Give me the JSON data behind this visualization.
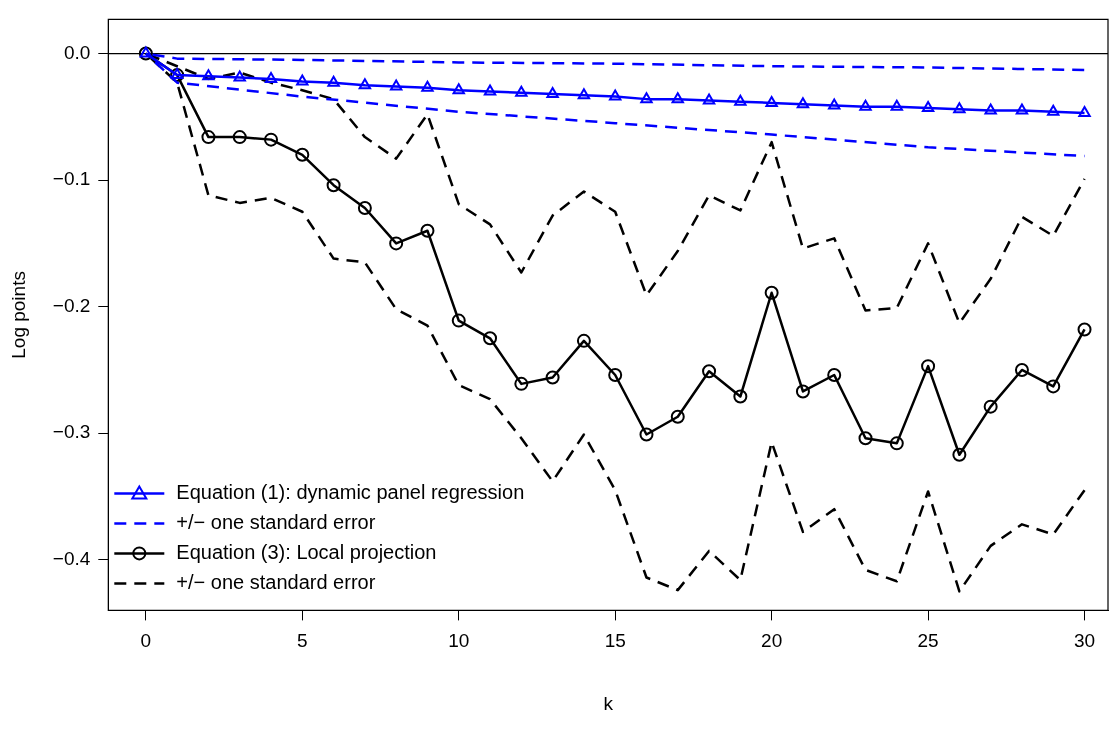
{
  "chart_data": {
    "type": "line",
    "xlabel": "k",
    "ylabel": "Log points",
    "xlim": [
      -1.2,
      30.75
    ],
    "ylim": [
      -0.44,
      0.027
    ],
    "xticks": [
      0,
      5,
      10,
      15,
      20,
      25,
      30
    ],
    "yticks": [
      {
        "value": -0.4,
        "label": "−0.4"
      },
      {
        "value": -0.3,
        "label": "−0.3"
      },
      {
        "value": -0.2,
        "label": "−0.2"
      },
      {
        "value": -0.1,
        "label": "−0.1"
      },
      {
        "value": 0,
        "label": "0.0"
      }
    ],
    "grid": false,
    "legend": "bottom left",
    "ref_lines": [
      {
        "axis": "y",
        "value": 0,
        "color": "#000000"
      }
    ],
    "series": [
      {
        "name": "Equation (1): dynamic panel regression",
        "color": "#0000ff",
        "marker": "triangle",
        "line_style": "solid",
        "x": [
          0,
          1,
          2,
          3,
          4,
          5,
          6,
          7,
          8,
          9,
          10,
          11,
          12,
          13,
          14,
          15,
          16,
          17,
          18,
          19,
          20,
          21,
          22,
          23,
          24,
          25,
          26,
          27,
          28,
          29,
          30
        ],
        "values": [
          0,
          -0.017,
          -0.018,
          -0.019,
          -0.02,
          -0.022,
          -0.023,
          -0.025,
          -0.026,
          -0.027,
          -0.029,
          -0.03,
          -0.031,
          -0.032,
          -0.033,
          -0.034,
          -0.036,
          -0.036,
          -0.037,
          -0.038,
          -0.039,
          -0.04,
          -0.041,
          -0.042,
          -0.042,
          -0.043,
          -0.044,
          -0.045,
          -0.045,
          -0.046,
          -0.047
        ]
      },
      {
        "name": "+/− one standard error",
        "color": "#0000ff",
        "marker": "none",
        "line_style": "dashed",
        "x": [
          0,
          1,
          5,
          10,
          15,
          20,
          25,
          30
        ],
        "values": [
          0,
          -0.004,
          -0.005,
          -0.007,
          -0.008,
          -0.01,
          -0.011,
          -0.013
        ]
      },
      {
        "color": "#0000ff",
        "marker": "none",
        "line_style": "dashed",
        "x": [
          0,
          1,
          5,
          10,
          15,
          20,
          25,
          30
        ],
        "values": [
          0,
          -0.023,
          -0.034,
          -0.046,
          -0.055,
          -0.064,
          -0.074,
          -0.081
        ]
      },
      {
        "name": "Equation (3): Local projection",
        "color": "#000000",
        "marker": "circle",
        "line_style": "solid",
        "x": [
          0,
          1,
          2,
          3,
          4,
          5,
          6,
          7,
          8,
          9,
          10,
          11,
          12,
          13,
          14,
          15,
          16,
          17,
          18,
          19,
          20,
          21,
          22,
          23,
          24,
          25,
          26,
          27,
          28,
          29,
          30
        ],
        "values": [
          0,
          -0.017,
          -0.066,
          -0.066,
          -0.068,
          -0.08,
          -0.104,
          -0.122,
          -0.15,
          -0.14,
          -0.211,
          -0.225,
          -0.261,
          -0.256,
          -0.227,
          -0.254,
          -0.301,
          -0.287,
          -0.251,
          -0.271,
          -0.189,
          -0.267,
          -0.254,
          -0.304,
          -0.308,
          -0.247,
          -0.317,
          -0.279,
          -0.25,
          -0.263,
          -0.218
        ]
      },
      {
        "name": "+/− one standard error",
        "color": "#000000",
        "marker": "none",
        "line_style": "dashed",
        "x": [
          0,
          1,
          2,
          3,
          4,
          5,
          6,
          7,
          8,
          9,
          10,
          11,
          12,
          13,
          14,
          15,
          16,
          17,
          18,
          19,
          20,
          21,
          22,
          23,
          24,
          25,
          26,
          27,
          28,
          29,
          30
        ],
        "values": [
          0,
          -0.01,
          -0.02,
          -0.015,
          -0.023,
          -0.029,
          -0.036,
          -0.066,
          -0.083,
          -0.048,
          -0.119,
          -0.135,
          -0.173,
          -0.128,
          -0.109,
          -0.125,
          -0.191,
          -0.156,
          -0.112,
          -0.124,
          -0.07,
          -0.154,
          -0.146,
          -0.203,
          -0.201,
          -0.15,
          -0.213,
          -0.178,
          -0.129,
          -0.144,
          -0.099
        ]
      },
      {
        "color": "#000000",
        "marker": "none",
        "line_style": "dashed",
        "x": [
          0,
          1,
          2,
          3,
          4,
          5,
          6,
          7,
          8,
          9,
          10,
          11,
          12,
          13,
          14,
          15,
          16,
          17,
          18,
          19,
          20,
          21,
          22,
          23,
          24,
          25,
          26,
          27,
          28,
          29,
          30
        ],
        "values": [
          0,
          -0.023,
          -0.112,
          -0.118,
          -0.114,
          -0.125,
          -0.162,
          -0.165,
          -0.202,
          -0.215,
          -0.262,
          -0.273,
          -0.304,
          -0.338,
          -0.301,
          -0.345,
          -0.414,
          -0.424,
          -0.393,
          -0.416,
          -0.307,
          -0.378,
          -0.36,
          -0.408,
          -0.417,
          -0.346,
          -0.425,
          -0.389,
          -0.372,
          -0.38,
          -0.345
        ]
      }
    ]
  }
}
